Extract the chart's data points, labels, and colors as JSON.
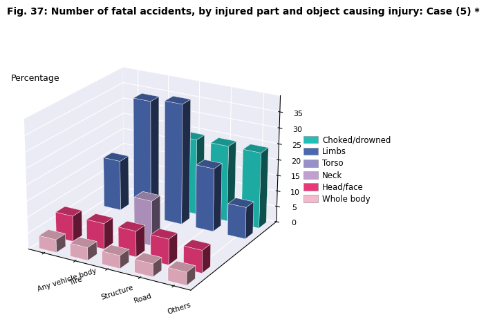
{
  "title": "Fig. 37: Number of fatal accidents, by injured part and object causing injury: Case (5) *",
  "ylabel": "Percentage",
  "categories": [
    "Any vehicle body",
    "Tire",
    "Structure",
    "Road",
    "Others"
  ],
  "series": [
    "Whole body",
    "Head/face",
    "Neck",
    "Torso",
    "Limbs",
    "Choked/drowned"
  ],
  "values": {
    "Whole body": [
      4,
      4,
      4,
      4,
      4
    ],
    "Head/face": [
      8,
      8,
      8,
      8,
      7
    ],
    "Neck": [
      0,
      0,
      14,
      0,
      0
    ],
    "Torso": [
      0,
      0,
      0,
      0,
      0
    ],
    "Limbs": [
      16,
      37,
      38,
      20,
      10
    ],
    "Choked/drowned": [
      0,
      0,
      24,
      24,
      24
    ]
  },
  "colors": {
    "Whole body": "#F5B8CC",
    "Head/face": "#E83878",
    "Neck": "#C0A0D0",
    "Torso": "#9890C8",
    "Limbs": "#4868B0",
    "Choked/drowned": "#20C0B8"
  },
  "ylim": [
    0,
    40
  ],
  "yticks": [
    0,
    5,
    10,
    15,
    20,
    25,
    30,
    35
  ],
  "bg_color": "#D8D8EC",
  "title_fontsize": 10,
  "label_fontsize": 9,
  "legend_fontsize": 8.5,
  "elev": 22,
  "azim": -60,
  "bar_width": 0.55,
  "bar_depth": 0.55
}
